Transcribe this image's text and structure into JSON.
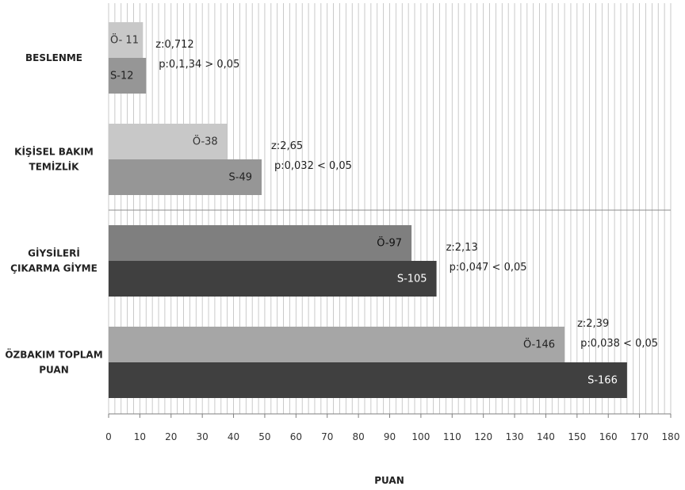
{
  "chart_data": {
    "type": "bar",
    "orientation": "horizontal",
    "xlabel": "PUAN",
    "xlim": [
      0,
      180
    ],
    "xticks": [
      0,
      10,
      20,
      30,
      40,
      50,
      60,
      70,
      80,
      90,
      100,
      110,
      120,
      130,
      140,
      150,
      160,
      170,
      180
    ],
    "grid": true,
    "categories": [
      {
        "lines": [
          "BESLENME"
        ],
        "bars": [
          {
            "label": "Ö- 11",
            "value": 11,
            "color": "#c8c8c8",
            "text_color": "#333333"
          },
          {
            "label": "S-12",
            "value": 12,
            "color": "#969696",
            "text_color": "#222222"
          }
        ],
        "stats": [
          "z:0,712",
          "p:0,1,34 > 0,05"
        ]
      },
      {
        "lines": [
          "KİŞİSEL BAKIM",
          "TEMİZLİK"
        ],
        "bars": [
          {
            "label": "Ö-38",
            "value": 38,
            "color": "#c8c8c8",
            "text_color": "#333333"
          },
          {
            "label": "S-49",
            "value": 49,
            "color": "#969696",
            "text_color": "#222222"
          }
        ],
        "stats": [
          "z:2,65",
          "p:0,032 < 0,05"
        ]
      },
      {
        "lines": [
          "GİYSİLERİ",
          "ÇIKARMA GİYME"
        ],
        "bars": [
          {
            "label": "Ö-97",
            "value": 97,
            "color": "#7f7f7f",
            "text_color": "#111111"
          },
          {
            "label": "S-105",
            "value": 105,
            "color": "#404040",
            "text_color": "#ffffff"
          }
        ],
        "stats": [
          "z:2,13",
          "p:0,047 < 0,05"
        ]
      },
      {
        "lines": [
          "ÖZBAKIM TOPLAM",
          "PUAN"
        ],
        "bars": [
          {
            "label": "Ö-146",
            "value": 146,
            "color": "#a6a6a6",
            "text_color": "#222222"
          },
          {
            "label": "S-166",
            "value": 166,
            "color": "#404040",
            "text_color": "#ffffff"
          }
        ],
        "stats": [
          "z:2,39",
          "p:0,038 < 0,05"
        ]
      }
    ]
  }
}
